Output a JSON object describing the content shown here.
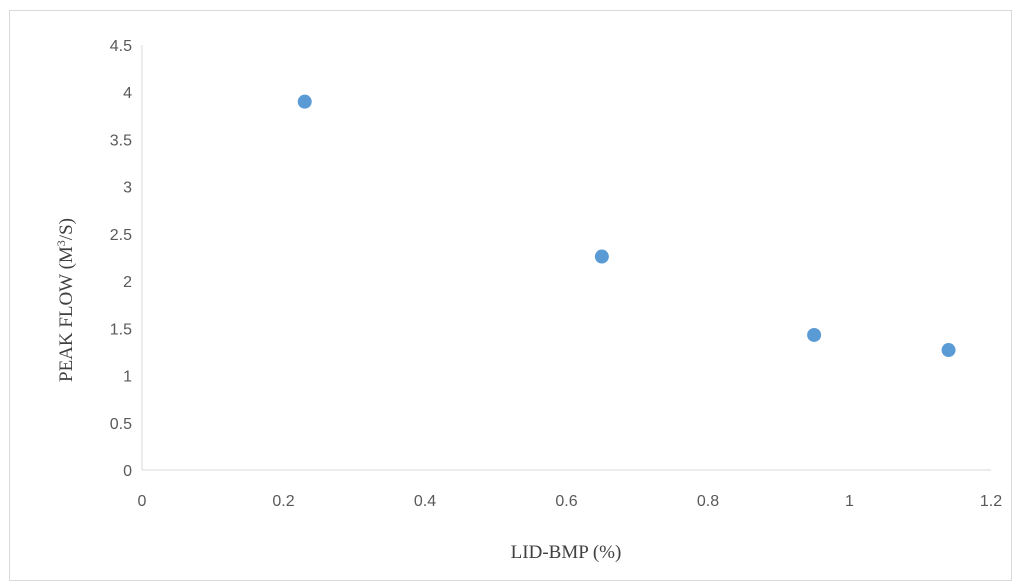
{
  "chart_data": {
    "type": "scatter",
    "title": "",
    "xlabel": "LID-BMP (%)",
    "ylabel_main": "PEAK FLOW (M",
    "ylabel_sup": "3",
    "ylabel_end": "/S)",
    "xlim": [
      0,
      1.2
    ],
    "ylim": [
      0,
      4.5
    ],
    "x_ticks": [
      "0",
      "0.2",
      "0.4",
      "0.6",
      "0.8",
      "1",
      "1.2"
    ],
    "y_ticks": [
      "0",
      "0.5",
      "1",
      "1.5",
      "2",
      "2.5",
      "3",
      "3.5",
      "4",
      "4.5"
    ],
    "grid": false,
    "legend": "none",
    "point_color": "#5b9bd5",
    "axis_color": "#d9d9d9",
    "series": [
      {
        "x": [
          0.23,
          0.65,
          0.95,
          1.14
        ],
        "y": [
          3.9,
          2.26,
          1.43,
          1.27
        ]
      }
    ]
  }
}
